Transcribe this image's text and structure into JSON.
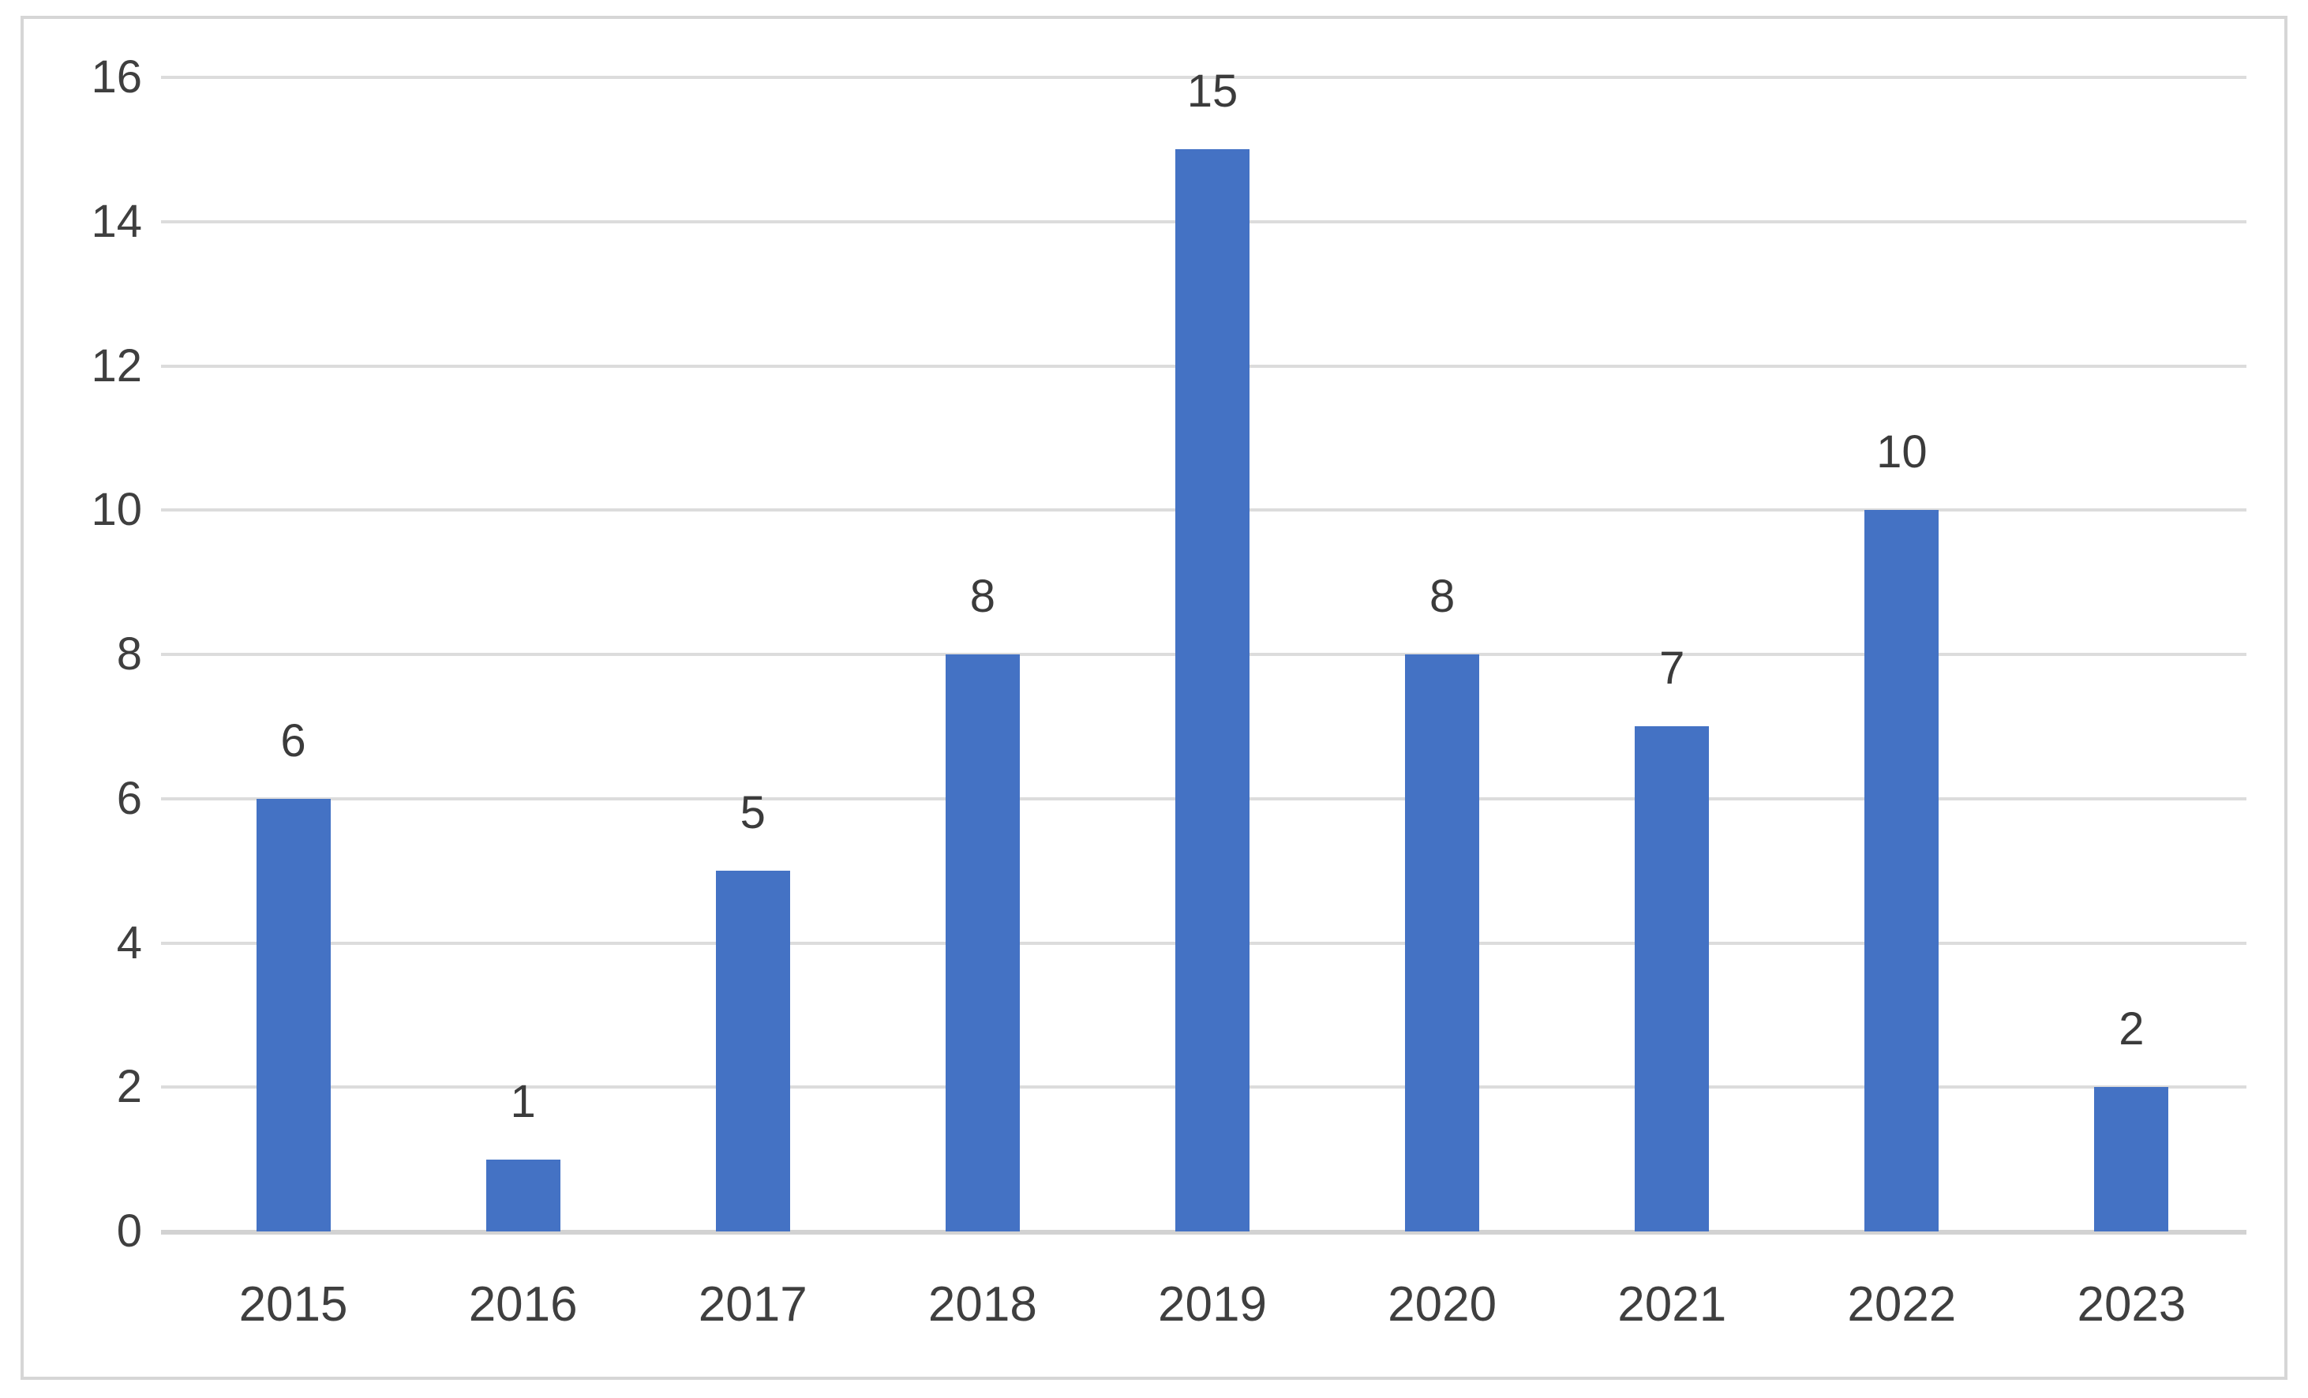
{
  "colors": {
    "bar_fill": "#4472c4",
    "gridline": "#dcdcdc",
    "axis_line": "#d2d2d2",
    "frame_border": "#d6d6d6",
    "label_text": "#3f3f3f",
    "background": "#ffffff"
  },
  "chart_data": {
    "type": "bar",
    "title": "",
    "xlabel": "",
    "ylabel": "",
    "categories": [
      "2015",
      "2016",
      "2017",
      "2018",
      "2019",
      "2020",
      "2021",
      "2022",
      "2023"
    ],
    "values": [
      6,
      1,
      5,
      8,
      15,
      8,
      7,
      10,
      2
    ],
    "data_labels": [
      "6",
      "1",
      "5",
      "8",
      "15",
      "8",
      "7",
      "10",
      "2"
    ],
    "yticks": [
      0,
      2,
      4,
      6,
      8,
      10,
      12,
      14,
      16
    ],
    "ytick_labels": [
      "0",
      "2",
      "4",
      "6",
      "8",
      "10",
      "12",
      "14",
      "16"
    ],
    "ylim": [
      0,
      16
    ],
    "grid": "horizontal",
    "legend_position": "none",
    "series_name": ""
  }
}
